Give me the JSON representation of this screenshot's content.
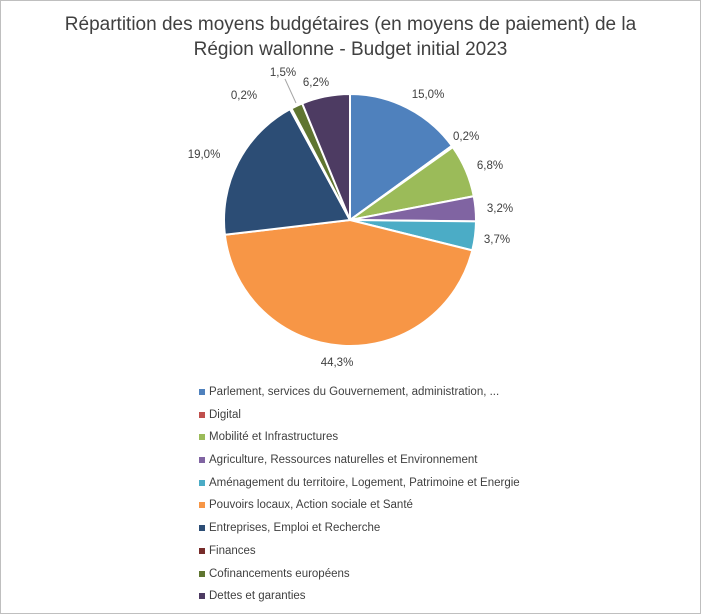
{
  "colors": {
    "background": "#ffffff",
    "border": "#bfbfbf",
    "text": "#404040"
  },
  "chart_data": {
    "type": "pie",
    "title_line1": "Répartition des moyens budgétaires (en moyens de paiement) de la",
    "title_line2": "Région wallonne - Budget initial 2023",
    "legend_position": "bottom",
    "slices": [
      {
        "name": "Parlement, services du Gouvernement, administration, ...",
        "value": 15.0,
        "label": "15,0%",
        "color": "#4f81bd"
      },
      {
        "name": "Digital",
        "value": 0.2,
        "label": "0,2%",
        "color": "#c0504d"
      },
      {
        "name": "Mobilité et Infrastructures",
        "value": 6.8,
        "label": "6,8%",
        "color": "#9bbb59"
      },
      {
        "name": "Agriculture, Ressources naturelles et Environnement",
        "value": 3.2,
        "label": "3,2%",
        "color": "#8064a2"
      },
      {
        "name": "Aménagement du territoire, Logement, Patrimoine et Energie",
        "value": 3.7,
        "label": "3,7%",
        "color": "#4bacc6"
      },
      {
        "name": "Pouvoirs locaux, Action sociale et Santé",
        "value": 44.3,
        "label": "44,3%",
        "color": "#f79646"
      },
      {
        "name": "Entreprises, Emploi et Recherche",
        "value": 19.0,
        "label": "19,0%",
        "color": "#2c4d75"
      },
      {
        "name": "Finances",
        "value": 0.2,
        "label": "0,2%",
        "color": "#772c2a"
      },
      {
        "name": "Cofinancements européens",
        "value": 1.5,
        "label": "1,5%",
        "color": "#5f7530"
      },
      {
        "name": "Dettes et garanties",
        "value": 6.2,
        "label": "6,2%",
        "color": "#4d3b62"
      }
    ]
  }
}
